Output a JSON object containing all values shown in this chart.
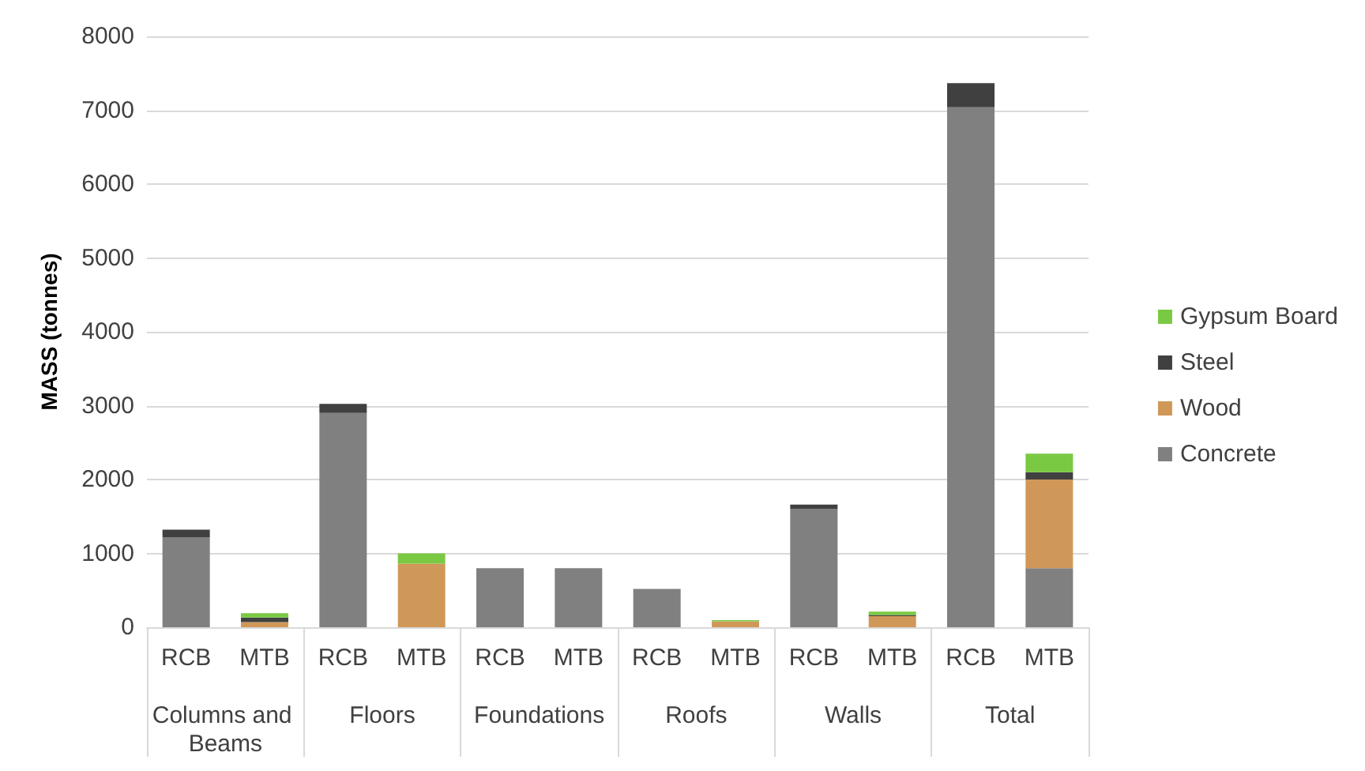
{
  "chart_data": {
    "type": "bar",
    "stacked": true,
    "ylabel": "MASS (tonnes)",
    "categories": [
      "RCB",
      "MTB",
      "RCB",
      "MTB",
      "RCB",
      "MTB",
      "RCB",
      "MTB",
      "RCB",
      "MTB",
      "RCB",
      "MTB"
    ],
    "annotations": [
      "Columns and Beams",
      "Floors",
      "Foundations",
      "Roofs",
      "Walls",
      "Total"
    ],
    "series": [
      {
        "name": "Concrete",
        "color": "#808080",
        "values": [
          1220,
          0,
          2900,
          0,
          800,
          800,
          520,
          0,
          1600,
          0,
          7040,
          800
        ]
      },
      {
        "name": "Wood",
        "color": "#d09858",
        "values": [
          0,
          70,
          0,
          860,
          0,
          0,
          0,
          80,
          0,
          150,
          0,
          1200
        ]
      },
      {
        "name": "Steel",
        "color": "#404040",
        "values": [
          100,
          60,
          125,
          0,
          0,
          0,
          0,
          0,
          60,
          15,
          325,
          100
        ]
      },
      {
        "name": "Gypsum Board",
        "color": "#7ac943",
        "values": [
          0,
          60,
          0,
          140,
          0,
          0,
          0,
          15,
          0,
          45,
          0,
          250
        ]
      }
    ],
    "ylim": [
      0,
      8000
    ],
    "yticks": [
      0,
      1000,
      2000,
      3000,
      4000,
      5000,
      6000,
      7000,
      8000
    ],
    "grid": "y",
    "legend": "right"
  }
}
